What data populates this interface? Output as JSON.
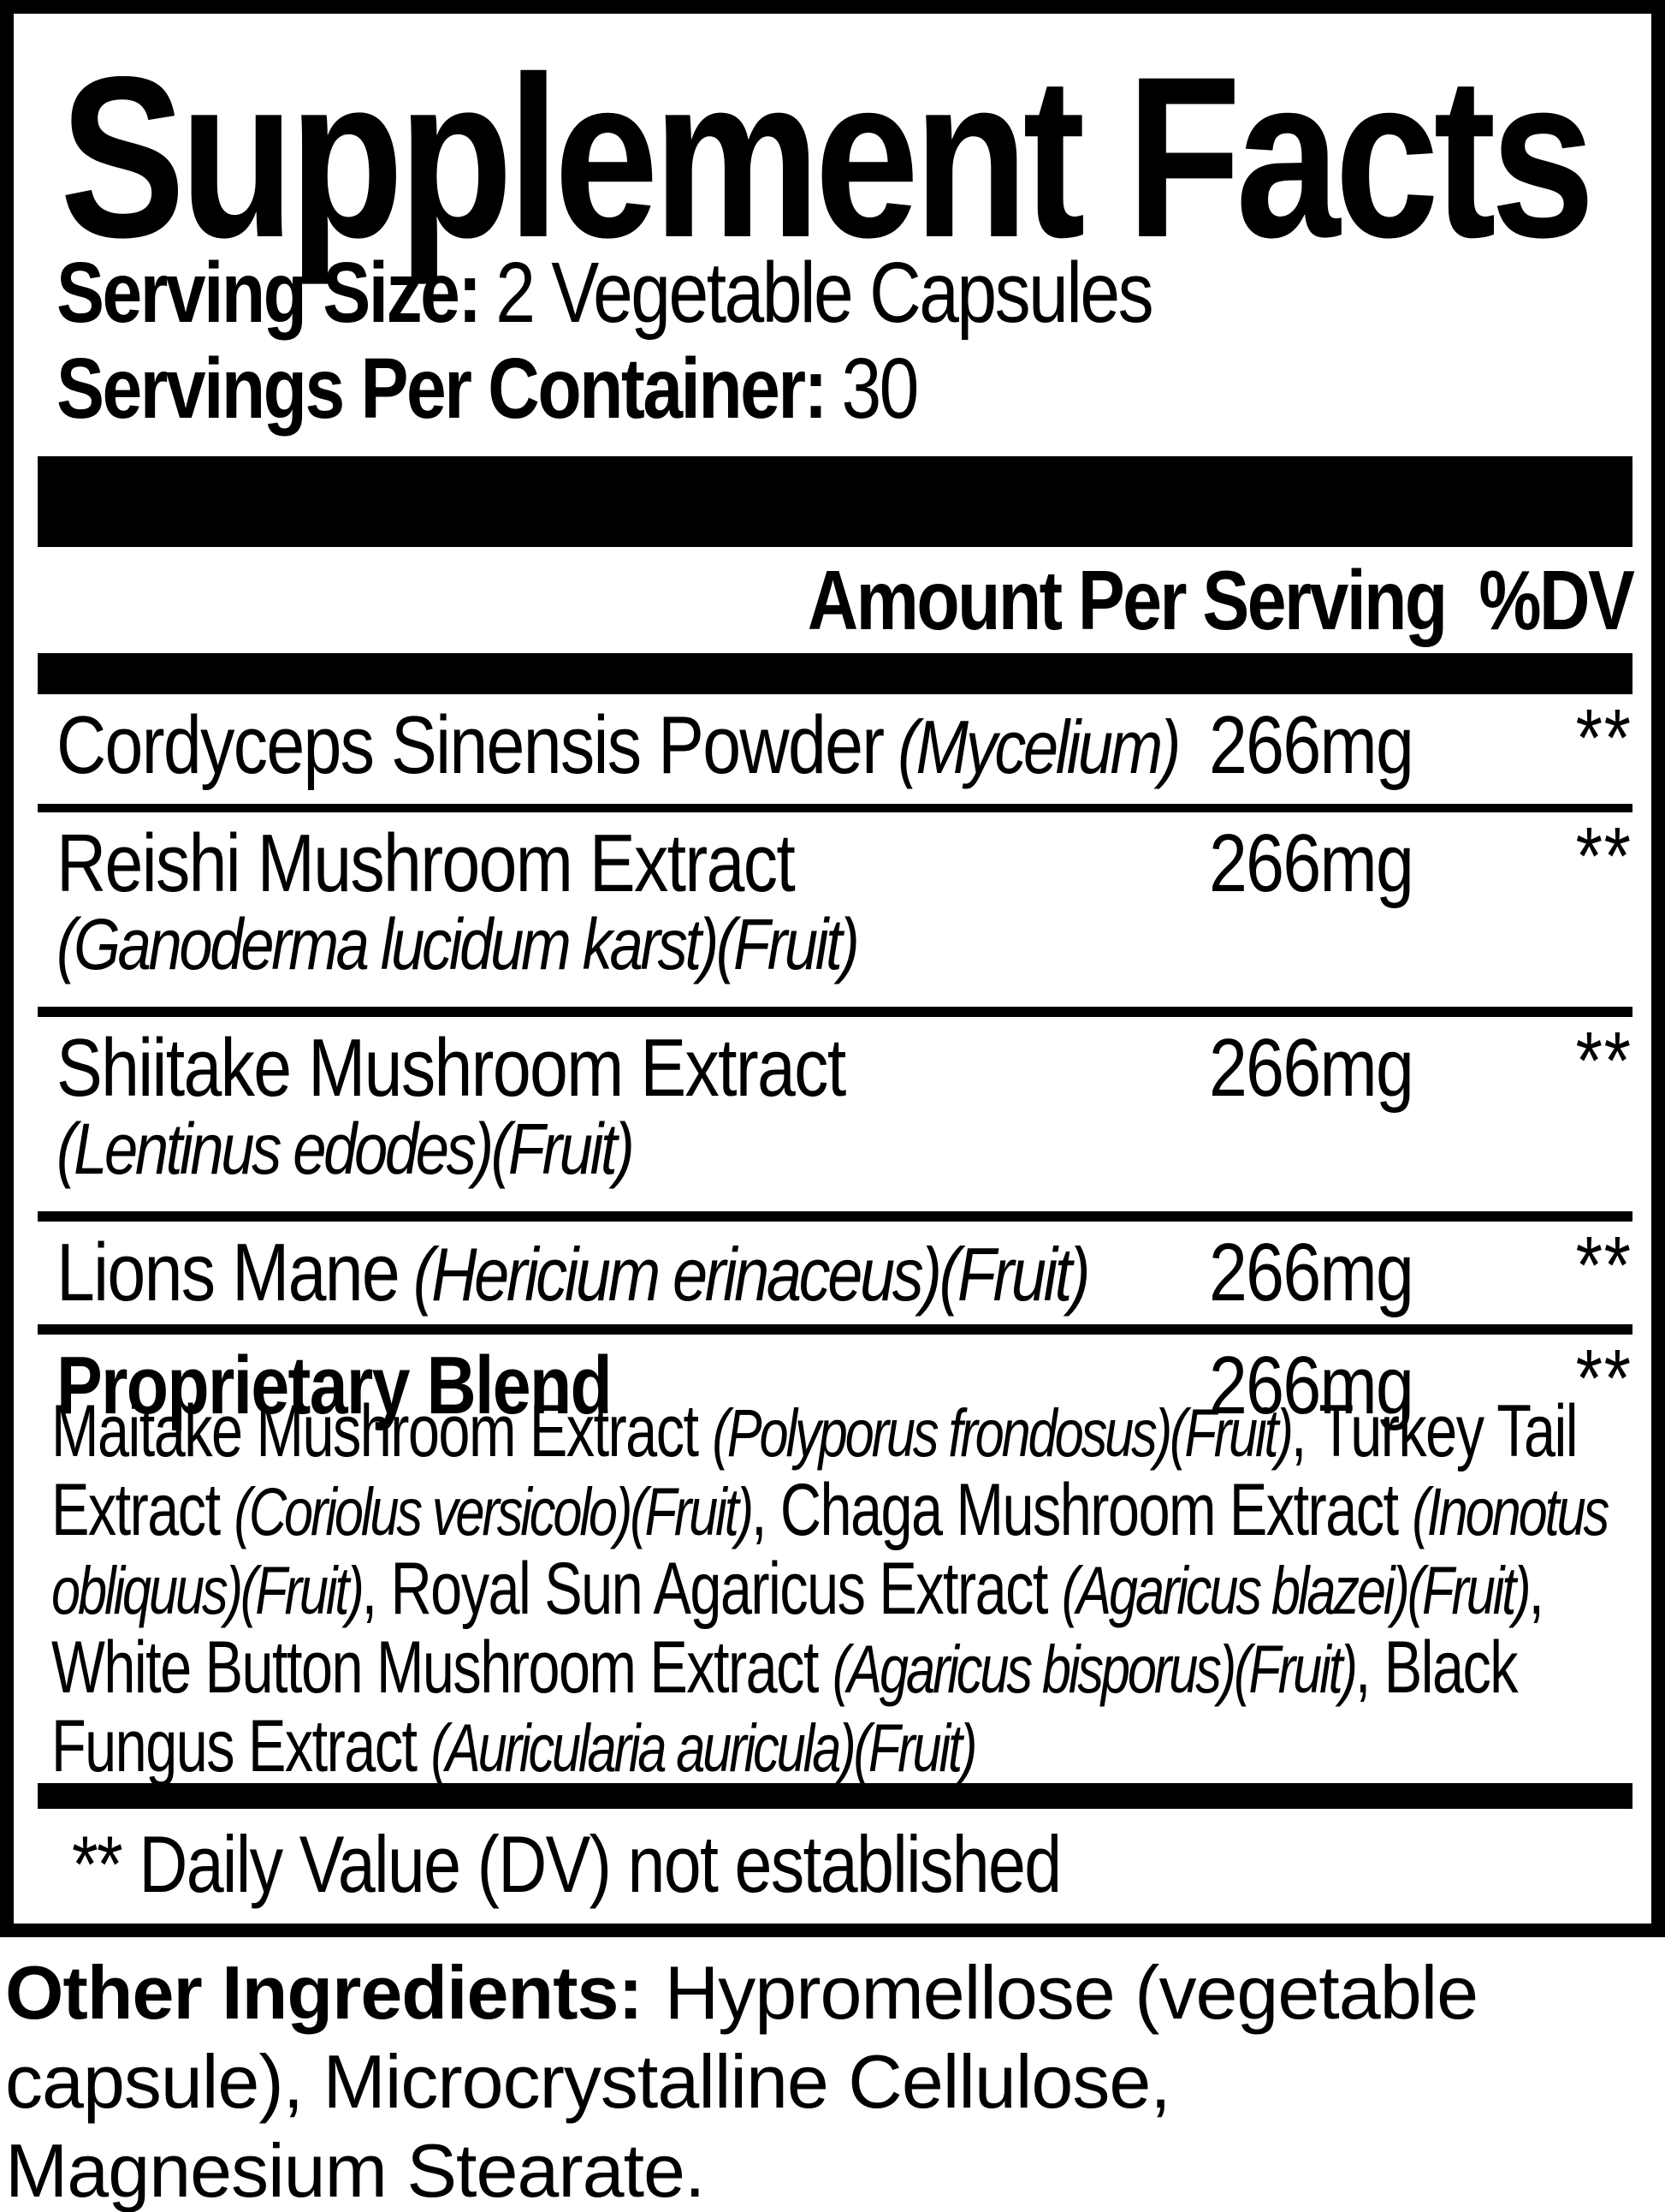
{
  "colors": {
    "ink": "#000000",
    "paper": "#ffffff"
  },
  "title": "Supplement Facts",
  "serving": {
    "size_label": "Serving Size:",
    "size_value": "2 Vegetable Capsules",
    "container_label": "Servings Per Container:",
    "container_value": "30"
  },
  "table": {
    "header": {
      "amount_col": "Amount Per Serving",
      "dv_col": "%DV"
    },
    "rows": [
      {
        "name": "Cordyceps Sinensis Powder",
        "latin": "(Mycelium)",
        "amount": "266mg",
        "dv": "**"
      },
      {
        "name": "Reishi Mushroom Extract",
        "latin": "(Ganoderma lucidum karst)(Fruit)",
        "amount": "266mg",
        "dv": "**"
      },
      {
        "name": "Shiitake Mushroom Extract",
        "latin": "(Lentinus edodes)(Fruit)",
        "amount": "266mg",
        "dv": "**"
      },
      {
        "name": "Lions Mane",
        "latin": "(Hericium erinaceus)(Fruit)",
        "amount": "266mg",
        "dv": "**"
      },
      {
        "name": "Proprietary Blend",
        "latin": "",
        "amount": "266mg",
        "dv": "**"
      }
    ]
  },
  "blend": {
    "segments": [
      {
        "text": "Maitake Mushroom Extract "
      },
      {
        "text": "(Polyporus frondosus)(Fruit)"
      },
      {
        "text": ", Turkey Tail Extract "
      },
      {
        "text": "(Coriolus versicolo)(Fruit)"
      },
      {
        "text": ", Chaga Mushroom Extract "
      },
      {
        "text": "(Inonotus obliquus)(Fruit)"
      },
      {
        "text": ", Royal Sun Agaricus Extract "
      },
      {
        "text": "(Agaricus blazei)(Fruit)"
      },
      {
        "text": ", White Button Mushroom Extract "
      },
      {
        "text": "(Agaricus bisporus)(Fruit)"
      },
      {
        "text": ", Black Fungus Extract "
      },
      {
        "text": "(Auricularia auricula)(Fruit)"
      }
    ]
  },
  "footnote": "** Daily Value (DV) not established",
  "other": {
    "label": "Other Ingredients:",
    "line1": "Hypromellose (vegetable",
    "line2": "capsule), Microcrystalline Cellulose,",
    "line3": "Magnesium Stearate."
  }
}
